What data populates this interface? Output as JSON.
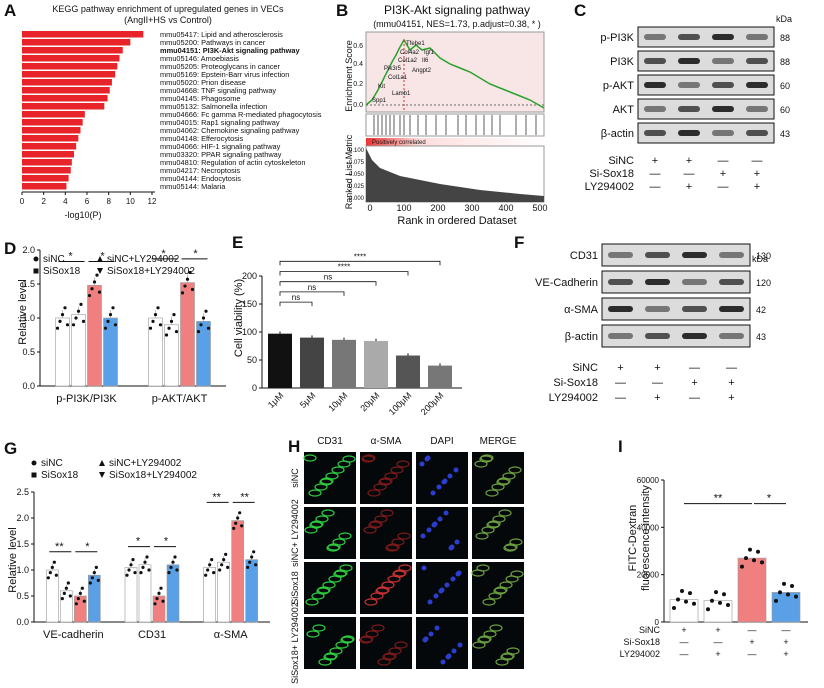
{
  "panel_letters": [
    "A",
    "B",
    "C",
    "D",
    "E",
    "F",
    "G",
    "H",
    "I"
  ],
  "panelA": {
    "title": "KEGG pathway enrichment of upregulated genes in VECs",
    "subtitle": "(AngII+HS vs Control)",
    "xlabel": "-log10(P)",
    "xticks": [
      "0",
      "2",
      "4",
      "6",
      "8",
      "10",
      "12"
    ],
    "terms": [
      "mmu05417: Lipid and atherosclerosis",
      "mmu05200: Pathways in cancer",
      "mmu04151: PI3K-Akt signaling pathway",
      "mmu05146: Amoebiasis",
      "mmu05205: Proteoglycans in cancer",
      "mmu05169: Epstein-Barr virus infection",
      "mmu05020: Prion disease",
      "mmu04668: TNF signaling pathway",
      "mmu04145: Phagosome",
      "mmu05132: Salmonella infection",
      "mmu04666: Fc gamma R-mediated phagocytosis",
      "mmu04015: Rap1 signaling pathway",
      "mmu04062: Chemokine signaling pathway",
      "mmu04148: Efferocytosis",
      "mmu04066: HIF-1 signaling pathway",
      "mmu03320: PPAR signaling pathway",
      "mmu04810: Regulation of actin cytoskeleton",
      "mmu04217: Necroptosis",
      "mmu04144: Endocytosis",
      "mmu05144: Malaria"
    ],
    "values": [
      11.2,
      10.0,
      9.3,
      9.0,
      8.8,
      8.6,
      8.3,
      8.1,
      7.9,
      7.6,
      5.8,
      5.6,
      5.4,
      5.2,
      5.0,
      4.8,
      4.6,
      4.5,
      4.3,
      4.1
    ],
    "highlight": 2,
    "bar_color": "#e8242a"
  },
  "panelB": {
    "title": "PI3K-Akt signaling pathway",
    "subtitle": "(mmu04151, NES=1.73, p.adjust=0.38, * )",
    "ylabel1": "Enrichment Score",
    "ylabel2": "Ranked List Metric",
    "yticks1": [
      "0.6",
      "0.4",
      "0.2",
      "0.0"
    ],
    "yticks2": [
      "0.100",
      "0.075",
      "0.050",
      "0.025",
      "0.000"
    ],
    "xticks": [
      "0",
      "100",
      "200",
      "300",
      "400",
      "500"
    ],
    "xlabel": "Rank in ordered Dataset",
    "correlated": "Positively correlated",
    "genes": [
      "Tfebe1",
      "Col4a2",
      "Igf1",
      "Col1a2",
      "Il6",
      "Pik3r5",
      "Angpt2",
      "Col1a1",
      "Kit",
      "Lamb1",
      "Spp1"
    ]
  },
  "panelC": {
    "kda": "kDa",
    "bands": [
      {
        "name": "p-PI3K",
        "kda": "88"
      },
      {
        "name": "PI3K",
        "kda": "88"
      },
      {
        "name": "p-AKT",
        "kda": "60"
      },
      {
        "name": "AKT",
        "kda": "60"
      },
      {
        "name": "β-actin",
        "kda": "43"
      }
    ],
    "rows": [
      {
        "label": "SiNC",
        "signs": [
          "+",
          "+",
          "—",
          "—"
        ]
      },
      {
        "label": "Si-Sox18",
        "signs": [
          "—",
          "—",
          "+",
          "+"
        ]
      },
      {
        "label": "LY294002",
        "signs": [
          "—",
          "+",
          "—",
          "+"
        ]
      }
    ]
  },
  "panelD": {
    "legend": [
      "siNC",
      "SiSox18",
      "siNC+LY294002",
      "SiSox18+LY294002"
    ],
    "ylabel": "Relative level",
    "yticks": [
      "0.0",
      "0.5",
      "1.0",
      "1.5",
      "2.0"
    ],
    "groups": [
      "p-PI3K/PI3K",
      "p-AKT/AKT"
    ],
    "stars": [
      "*",
      "*",
      "*",
      "*"
    ]
  },
  "panelE": {
    "ylabel": "Cell viability (%)",
    "yticks": [
      "0",
      "50",
      "100",
      "150",
      "200"
    ],
    "categories": [
      "1μM",
      "5μM",
      "10μM",
      "20μM",
      "100μM",
      "200μM"
    ],
    "values": [
      97,
      90,
      86,
      84,
      58,
      40
    ],
    "sig": [
      "ns",
      "ns",
      "ns",
      "****",
      "****"
    ]
  },
  "panelF": {
    "kda": "kDa",
    "bands": [
      {
        "name": "CD31",
        "kda": "130"
      },
      {
        "name": "VE-Cadherin",
        "kda": "120"
      },
      {
        "name": "α-SMA",
        "kda": "42"
      },
      {
        "name": "β-actin",
        "kda": "43"
      }
    ],
    "rows": [
      {
        "label": "SiNC",
        "signs": [
          "+",
          "+",
          "—",
          "—"
        ]
      },
      {
        "label": "Si-Sox18",
        "signs": [
          "—",
          "—",
          "+",
          "+"
        ]
      },
      {
        "label": "LY294002",
        "signs": [
          "—",
          "+",
          "—",
          "+"
        ]
      }
    ]
  },
  "panelG": {
    "legend": [
      "siNC",
      "SiSox18",
      "siNC+LY294002",
      "SiSox18+LY294002"
    ],
    "ylabel": "Relative level",
    "yticks": [
      "0.0",
      "0.5",
      "1.0",
      "1.5",
      "2.0",
      "2.5"
    ],
    "groups": [
      "VE-cadherin",
      "CD31",
      "α-SMA"
    ],
    "stars": [
      "**",
      "*",
      "*",
      "*",
      "**",
      "**"
    ]
  },
  "panelH": {
    "columns": [
      "CD31",
      "α-SMA",
      "DAPI",
      "MERGE"
    ],
    "rows": [
      "siNC",
      "siNC+ LY294002",
      "SiSox18",
      "SiSox18+ LY294002"
    ]
  },
  "panelI": {
    "ylabel1": "FITC-Dextran",
    "ylabel2": "fluorescence intensity",
    "yticks": [
      "0",
      "20000",
      "40000",
      "60000"
    ],
    "values": [
      9500,
      9000,
      27000,
      12500
    ],
    "stars": [
      "**",
      "*"
    ],
    "rows": [
      {
        "label": "SiNC",
        "signs": [
          "+",
          "+",
          "—",
          "—"
        ]
      },
      {
        "label": "Si-Sox18",
        "signs": [
          "—",
          "—",
          "+",
          "+"
        ]
      },
      {
        "label": "LY294002",
        "signs": [
          "—",
          "+",
          "—",
          "+"
        ]
      }
    ]
  }
}
